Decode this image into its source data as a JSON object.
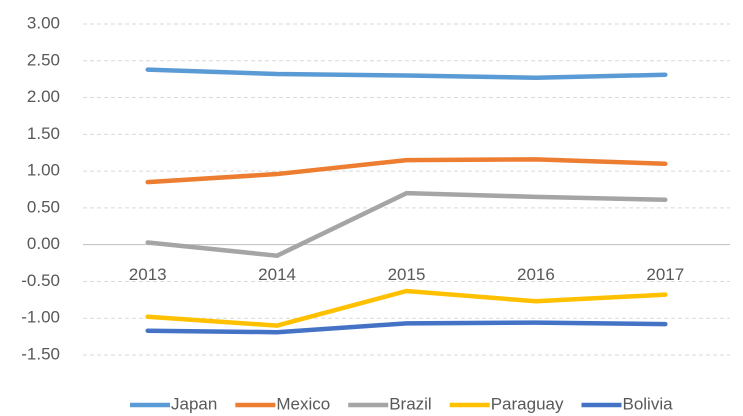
{
  "chart_data": {
    "type": "line",
    "categories": [
      "2013",
      "2014",
      "2015",
      "2016",
      "2017"
    ],
    "series": [
      {
        "name": "Japan",
        "color": "#5b9bd5",
        "values": [
          2.38,
          2.32,
          2.3,
          2.27,
          2.31
        ]
      },
      {
        "name": "Mexico",
        "color": "#ed7d31",
        "values": [
          0.85,
          0.96,
          1.15,
          1.16,
          1.1
        ]
      },
      {
        "name": "Brazil",
        "color": "#a5a5a5",
        "values": [
          0.03,
          -0.15,
          0.7,
          0.65,
          0.61
        ]
      },
      {
        "name": "Paraguay",
        "color": "#ffc000",
        "values": [
          -0.98,
          -1.1,
          -0.63,
          -0.77,
          -0.68
        ]
      },
      {
        "name": "Bolivia",
        "color": "#4472c4",
        "values": [
          -1.17,
          -1.19,
          -1.07,
          -1.06,
          -1.08
        ]
      }
    ],
    "ylim": [
      -1.5,
      3
    ],
    "yticks": [
      {
        "value": -1.5,
        "label": "-1.50"
      },
      {
        "value": -1,
        "label": "-1.00"
      },
      {
        "value": -0.5,
        "label": "-0.50"
      },
      {
        "value": 0,
        "label": "0.00"
      },
      {
        "value": 0.5,
        "label": "0.50"
      },
      {
        "value": 1,
        "label": "1.00"
      },
      {
        "value": 1.5,
        "label": "1.50"
      },
      {
        "value": 2,
        "label": "2.00"
      },
      {
        "value": 2.5,
        "label": "2.50"
      },
      {
        "value": 3,
        "label": "3.00"
      }
    ],
    "grid": true,
    "legend": "bottom"
  }
}
